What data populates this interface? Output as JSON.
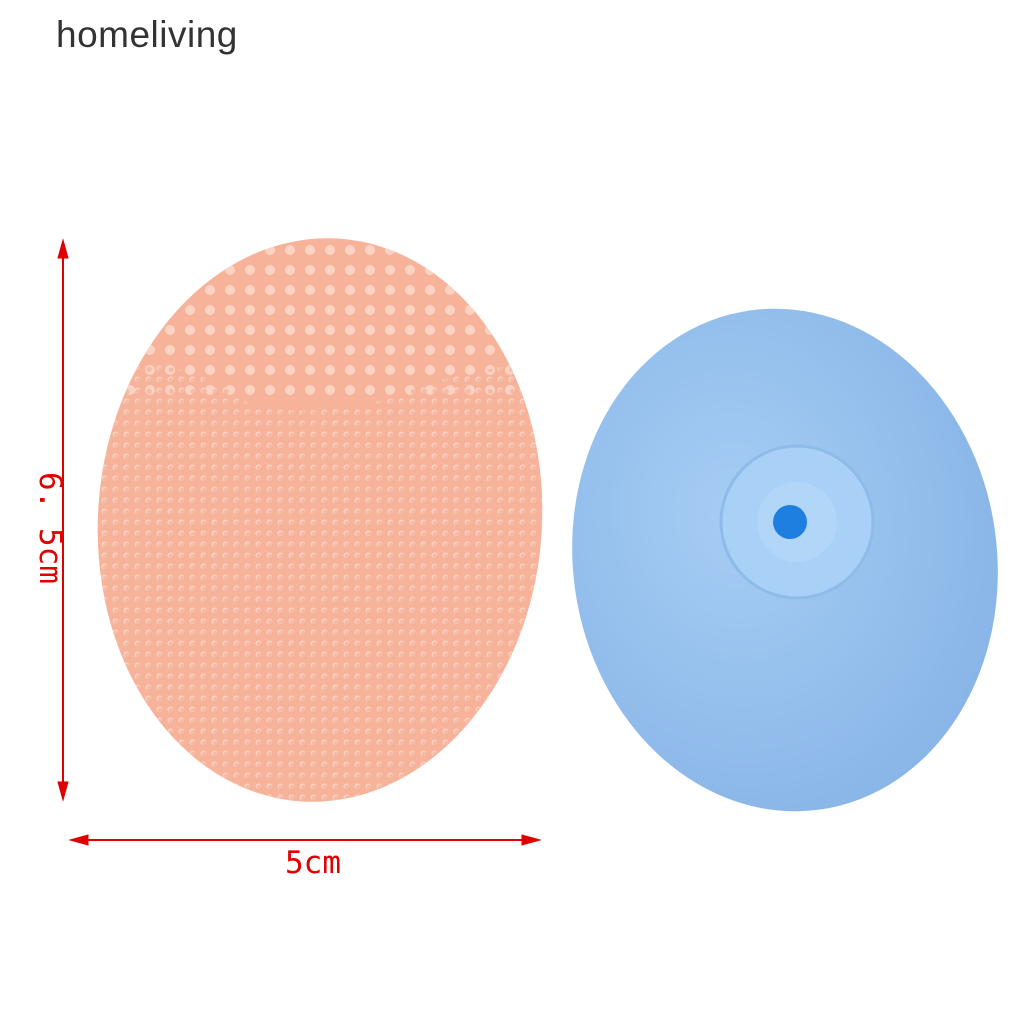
{
  "brand": {
    "name": "homeliving"
  },
  "dimensions": {
    "height_label": "6. 5cm",
    "width_label": "5cm"
  },
  "colors": {
    "pink_brush": "#f7b39a",
    "blue_brush": "#97c1ee",
    "arrow": "#e00000",
    "hole": "#1f7fe0"
  }
}
